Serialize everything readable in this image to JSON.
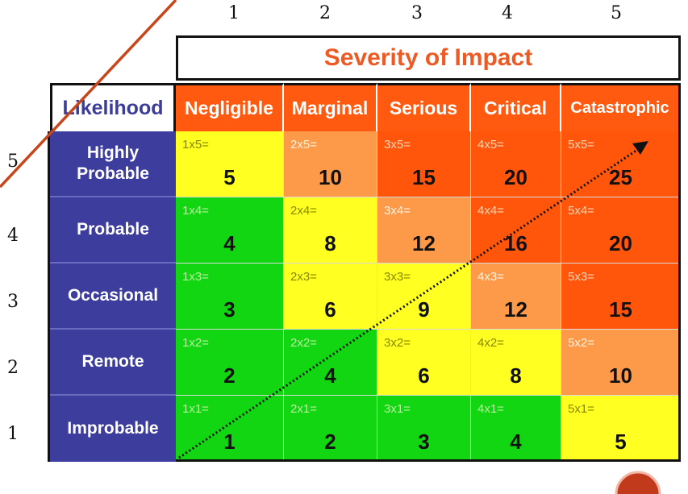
{
  "column_numbers": [
    "1",
    "2",
    "3",
    "4",
    "5"
  ],
  "severity_title": "Severity of Impact",
  "likelihood_header": "Likelihood",
  "severity_levels": [
    "Negligible",
    "Marginal",
    "Serious",
    "Critical",
    "Catastrophic"
  ],
  "likelihood_rows": [
    {
      "number": "5",
      "label_line1": "Highly",
      "label_line2": "Probable"
    },
    {
      "number": "4",
      "label_line1": "Probable",
      "label_line2": ""
    },
    {
      "number": "3",
      "label_line1": "Occasional",
      "label_line2": ""
    },
    {
      "number": "2",
      "label_line1": "Remote",
      "label_line2": ""
    },
    {
      "number": "1",
      "label_line1": "Improbable",
      "label_line2": ""
    }
  ],
  "matrix": [
    [
      {
        "formula": "1x5=",
        "result": "5",
        "band": "yellow"
      },
      {
        "formula": "2x5=",
        "result": "10",
        "band": "lightorange"
      },
      {
        "formula": "3x5=",
        "result": "15",
        "band": "red"
      },
      {
        "formula": "4x5=",
        "result": "20",
        "band": "red"
      },
      {
        "formula": "5x5=",
        "result": "25",
        "band": "red"
      }
    ],
    [
      {
        "formula": "1x4=",
        "result": "4",
        "band": "green"
      },
      {
        "formula": "2x4=",
        "result": "8",
        "band": "yellow"
      },
      {
        "formula": "3x4=",
        "result": "12",
        "band": "lightorange"
      },
      {
        "formula": "4x4=",
        "result": "16",
        "band": "red"
      },
      {
        "formula": "5x4=",
        "result": "20",
        "band": "red"
      }
    ],
    [
      {
        "formula": "1x3=",
        "result": "3",
        "band": "green"
      },
      {
        "formula": "2x3=",
        "result": "6",
        "band": "yellow"
      },
      {
        "formula": "3x3=",
        "result": "9",
        "band": "yellow"
      },
      {
        "formula": "4x3=",
        "result": "12",
        "band": "lightorange"
      },
      {
        "formula": "5x3=",
        "result": "15",
        "band": "red"
      }
    ],
    [
      {
        "formula": "1x2=",
        "result": "2",
        "band": "green"
      },
      {
        "formula": "2x2=",
        "result": "4",
        "band": "green"
      },
      {
        "formula": "3x2=",
        "result": "6",
        "band": "yellow"
      },
      {
        "formula": "4x2=",
        "result": "8",
        "band": "yellow"
      },
      {
        "formula": "5x2=",
        "result": "10",
        "band": "lightorange"
      }
    ],
    [
      {
        "formula": "1x1=",
        "result": "1",
        "band": "green"
      },
      {
        "formula": "2x1=",
        "result": "2",
        "band": "green"
      },
      {
        "formula": "3x1=",
        "result": "3",
        "band": "green"
      },
      {
        "formula": "4x1=",
        "result": "4",
        "band": "green"
      },
      {
        "formula": "5x1=",
        "result": "5",
        "band": "yellow"
      }
    ]
  ],
  "band_colors": {
    "green": {
      "bg": "#12d612",
      "formula": "#b8f0a0"
    },
    "yellow": {
      "bg": "#ffff22",
      "formula": "#888800"
    },
    "lightorange": {
      "bg": "#fc9a4a",
      "formula": "#fff2e0"
    },
    "red": {
      "bg": "#ff560c",
      "formula": "#ffd6b8"
    }
  },
  "colors": {
    "severity_title": "#ee5a24",
    "severity_header_bg": "#ff5a10",
    "likelihood_bg": "#3d3d9e",
    "diagonal_line": "#c8461c"
  },
  "icons": [
    "diagonal-line",
    "dotted-trend-arrow",
    "corner-logo-icon"
  ]
}
